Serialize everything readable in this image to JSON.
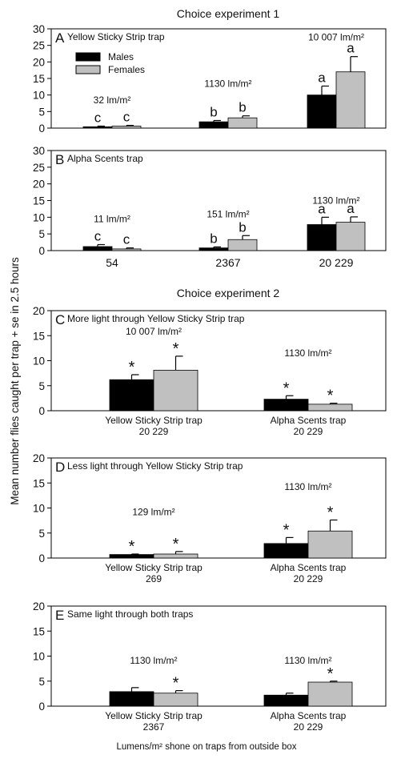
{
  "ylabel": "Mean number flies caught per trap + se in 2.5 hours",
  "xlabel": "Lumens/m² shone on traps from outside box",
  "section_titles": [
    "Choice experiment 1",
    "Choice experiment 2"
  ],
  "legend": {
    "males": "Males",
    "females": "Females"
  },
  "colors": {
    "males": "#000000",
    "females": "#c0c0c0",
    "axis": "#000000"
  },
  "chart_data": [
    {
      "type": "bar",
      "panel": "A",
      "title": "Yellow Sticky Strip trap",
      "categories": [
        "54",
        "2367",
        "20 229"
      ],
      "category_labels": [
        [],
        [],
        []
      ],
      "ylim": [
        0,
        30
      ],
      "yticks": [
        0,
        5,
        10,
        15,
        20,
        25,
        30
      ],
      "show_x_tick_labels": false,
      "series": [
        {
          "name": "Males",
          "values": [
            0.4,
            1.9,
            10
          ],
          "errors": [
            0.2,
            0.4,
            2.7
          ],
          "labels": [
            "c",
            "b",
            "a"
          ],
          "show_error": [
            true,
            true,
            true
          ]
        },
        {
          "name": "Females",
          "values": [
            0.6,
            3.1,
            17
          ],
          "errors": [
            0.2,
            0.6,
            4.6
          ],
          "labels": [
            "c",
            "b",
            "a"
          ],
          "show_error": [
            true,
            true,
            true
          ]
        }
      ],
      "annotations": [
        {
          "category": 0,
          "text": "32 lm/m²",
          "y": 7.5
        },
        {
          "category": 1,
          "text": "1130 lm/m²",
          "y": 12.5
        },
        {
          "category": 2,
          "text": "10 007 lm/m²",
          "y": 26.5
        }
      ]
    },
    {
      "type": "bar",
      "panel": "B",
      "title": "Alpha Scents trap",
      "categories": [
        "54",
        "2367",
        "20 229"
      ],
      "category_labels": [
        [
          "54"
        ],
        [
          "2367"
        ],
        [
          "20 229"
        ]
      ],
      "ylim": [
        0,
        30
      ],
      "yticks": [
        0,
        5,
        10,
        15,
        20,
        25,
        30
      ],
      "show_x_tick_labels": true,
      "series": [
        {
          "name": "Males",
          "values": [
            1.2,
            0.8,
            7.8
          ],
          "errors": [
            0.6,
            0.3,
            2.2
          ],
          "labels": [
            "c",
            "b",
            "a"
          ],
          "show_error": [
            true,
            true,
            true
          ]
        },
        {
          "name": "Females",
          "values": [
            0.5,
            3.3,
            8.5
          ],
          "errors": [
            0.3,
            1.2,
            1.6
          ],
          "labels": [
            "c",
            "b",
            "a"
          ],
          "show_error": [
            true,
            true,
            true
          ]
        }
      ],
      "annotations": [
        {
          "category": 0,
          "text": "11 lm/m²",
          "y": 8.5
        },
        {
          "category": 1,
          "text": "151 lm/m²",
          "y": 10
        },
        {
          "category": 2,
          "text": "1130 lm/m²",
          "y": 14
        }
      ]
    },
    {
      "type": "bar",
      "panel": "C",
      "title": "More light through Yellow Sticky Strip trap",
      "categories": [
        "Yellow Sticky Strip trap 20 229",
        "Alpha Scents trap 20 229"
      ],
      "category_labels": [
        [
          "Yellow Sticky Strip trap",
          "20 229"
        ],
        [
          "Alpha Scents trap",
          "20 229"
        ]
      ],
      "ylim": [
        0,
        20
      ],
      "yticks": [
        0,
        5,
        10,
        15,
        20
      ],
      "show_x_tick_labels": true,
      "series": [
        {
          "name": "Males",
          "values": [
            6.2,
            2.3
          ],
          "errors": [
            1.0,
            0.7
          ],
          "labels": [
            "*",
            "*"
          ],
          "show_error": [
            true,
            true
          ]
        },
        {
          "name": "Females",
          "values": [
            8.1,
            1.3
          ],
          "errors": [
            2.8,
            0.2
          ],
          "labels": [
            "*",
            "*"
          ],
          "show_error": [
            true,
            true
          ]
        }
      ],
      "annotations": [
        {
          "category": 0,
          "text": "10 007 lm/m²",
          "y": 15.2
        },
        {
          "category": 1,
          "text": "1130 lm/m²",
          "y": 10.9
        }
      ]
    },
    {
      "type": "bar",
      "panel": "D",
      "title": "Less light through Yellow Sticky Strip trap",
      "categories": [
        "Yellow Sticky Strip trap 269",
        "Alpha Scents trap 20 229"
      ],
      "category_labels": [
        [
          "Yellow Sticky Strip trap",
          "269"
        ],
        [
          "Alpha Scents trap",
          "20 229"
        ]
      ],
      "ylim": [
        0,
        20
      ],
      "yticks": [
        0,
        5,
        10,
        15,
        20
      ],
      "show_x_tick_labels": true,
      "series": [
        {
          "name": "Males",
          "values": [
            0.7,
            2.9
          ],
          "errors": [
            0.1,
            1.2
          ],
          "labels": [
            "*",
            "*"
          ],
          "show_error": [
            true,
            true
          ]
        },
        {
          "name": "Females",
          "values": [
            0.8,
            5.4
          ],
          "errors": [
            0.5,
            2.2
          ],
          "labels": [
            "*",
            "*"
          ],
          "show_error": [
            true,
            true
          ]
        }
      ],
      "annotations": [
        {
          "category": 0,
          "text": "129 lm/m²",
          "y": 8.6
        },
        {
          "category": 1,
          "text": "1130 lm/m²",
          "y": 13.6
        }
      ]
    },
    {
      "type": "bar",
      "panel": "E",
      "title": "Same light through both traps",
      "categories": [
        "Yellow Sticky Strip trap 2367",
        "Alpha Scents trap 20 229"
      ],
      "category_labels": [
        [
          "Yellow Sticky Strip trap",
          "2367"
        ],
        [
          "Alpha Scents trap",
          "20 229"
        ]
      ],
      "ylim": [
        0,
        20
      ],
      "yticks": [
        0,
        5,
        10,
        15,
        20
      ],
      "show_x_tick_labels": true,
      "series": [
        {
          "name": "Males",
          "values": [
            2.9,
            2.2
          ],
          "errors": [
            0.8,
            0.4
          ],
          "labels": [
            "",
            ""
          ],
          "show_error": [
            true,
            true
          ]
        },
        {
          "name": "Females",
          "values": [
            2.6,
            4.8
          ],
          "errors": [
            0.5,
            0.2
          ],
          "labels": [
            "*",
            "*"
          ],
          "show_error": [
            true,
            true
          ]
        }
      ],
      "annotations": [
        {
          "category": 0,
          "text": "1130 lm/m²",
          "y": 8.5
        },
        {
          "category": 1,
          "text": "1130 lm/m²",
          "y": 8.5
        }
      ]
    }
  ]
}
